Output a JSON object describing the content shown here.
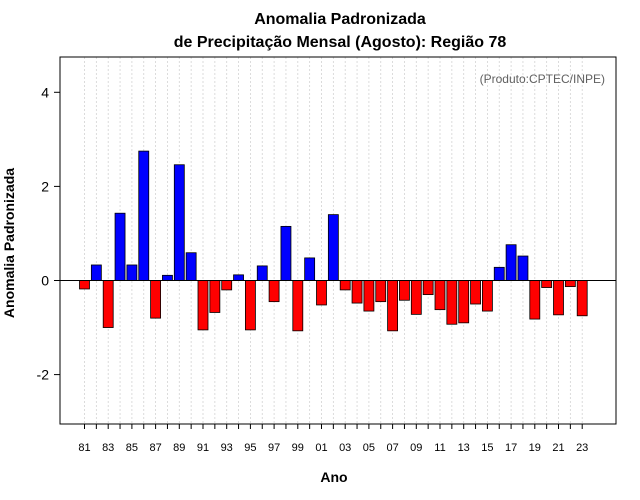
{
  "chart_data": {
    "type": "bar",
    "title_line1": "Anomalia Padronizada",
    "title_line2": "de Precipitação Mensal (Agosto): Região 78",
    "xlabel": "Ano",
    "ylabel": "Anomalia Padronizada",
    "credit": "(Produto:CPTEC/INPE)",
    "ylim": [
      -3.05,
      4.75
    ],
    "yticks": [
      {
        "value": 4,
        "label": "4"
      },
      {
        "value": 2,
        "label": "2"
      },
      {
        "value": 0,
        "label": "0"
      },
      {
        "value": -2,
        "label": "-2"
      }
    ],
    "categories": [
      "81",
      "82",
      "83",
      "84",
      "85",
      "86",
      "87",
      "88",
      "89",
      "90",
      "91",
      "92",
      "93",
      "94",
      "95",
      "96",
      "97",
      "98",
      "99",
      "00",
      "01",
      "02",
      "03",
      "04",
      "05",
      "06",
      "07",
      "08",
      "09",
      "10",
      "11",
      "12",
      "13",
      "14",
      "15",
      "16",
      "17",
      "18",
      "19",
      "20",
      "21",
      "22",
      "23"
    ],
    "tick_labels": [
      "81",
      "83",
      "85",
      "87",
      "89",
      "91",
      "93",
      "95",
      "97",
      "99",
      "01",
      "03",
      "05",
      "07",
      "09",
      "11",
      "13",
      "15",
      "17",
      "19",
      "21",
      "23"
    ],
    "values": [
      -0.18,
      0.33,
      -1.0,
      1.43,
      0.33,
      2.75,
      -0.8,
      0.11,
      2.46,
      0.59,
      -1.05,
      -0.68,
      -0.2,
      0.12,
      -1.05,
      0.31,
      -0.45,
      1.15,
      -1.07,
      0.48,
      -0.52,
      1.4,
      -0.2,
      -0.48,
      -0.65,
      -0.45,
      -1.07,
      -0.42,
      -0.72,
      -0.3,
      -0.62,
      -0.93,
      -0.9,
      -0.5,
      -0.65,
      0.28,
      0.76,
      0.52,
      -0.82,
      -0.15,
      -0.73,
      -0.13,
      -0.75
    ],
    "colors": {
      "positive": "#0000ff",
      "negative": "#ff0000",
      "grid": "#d3d3d3",
      "axis": "#000000"
    },
    "grid": true
  }
}
